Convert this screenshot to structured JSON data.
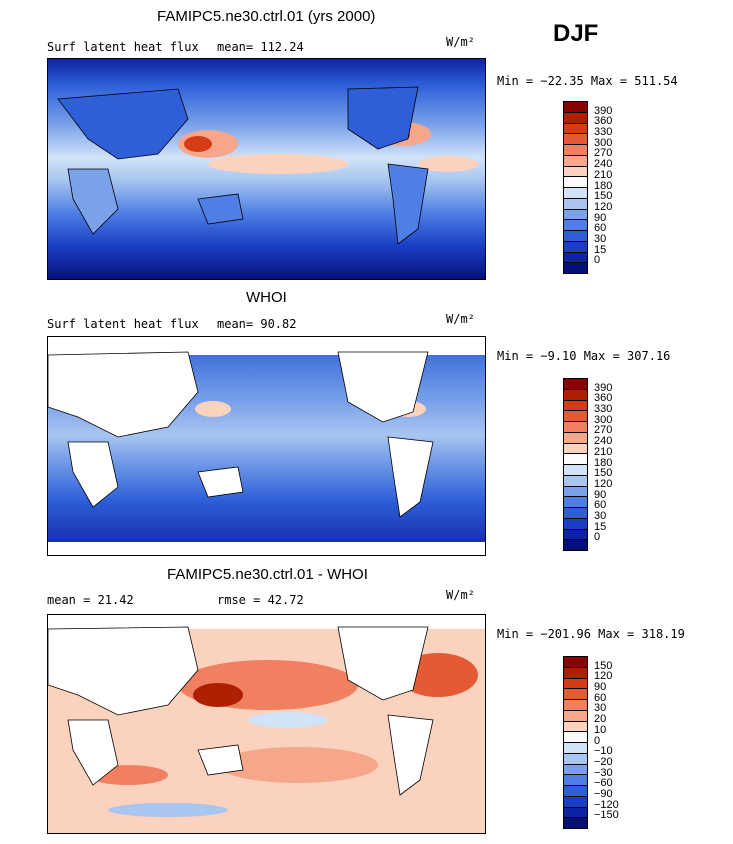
{
  "season": "DJF",
  "unit_label": "W/m²",
  "chart_data": [
    {
      "type": "heatmap",
      "title": "FAMIPC5.ne30.ctrl.01 (yrs 2000)",
      "variable": "Surf latent heat flux",
      "stat1": "mean= 112.24",
      "stat2": "",
      "minmax": "Min = −22.35 Max = 511.54",
      "colorbar": {
        "levels": [
          "390",
          "360",
          "330",
          "300",
          "270",
          "240",
          "210",
          "180",
          "150",
          "120",
          "90",
          "60",
          "30",
          "15",
          "0"
        ],
        "colors": [
          "#8b0000",
          "#b01e00",
          "#d33c14",
          "#e55a32",
          "#f08060",
          "#f6a68a",
          "#fbd2be",
          "#fbfbfb",
          "#d2e3f8",
          "#a8c6f0",
          "#7aa2ea",
          "#4f7fe4",
          "#2e5fd8",
          "#1a3fc4",
          "#0e22a6",
          "#06107a"
        ]
      },
      "min": -22.35,
      "max": 511.54,
      "mean": 112.24
    },
    {
      "type": "heatmap",
      "title": "WHOI",
      "variable": "Surf latent heat flux",
      "stat1": "mean=  90.82",
      "stat2": "",
      "minmax": "Min =  −9.10 Max = 307.16",
      "colorbar": {
        "levels": [
          "390",
          "360",
          "330",
          "300",
          "270",
          "240",
          "210",
          "180",
          "150",
          "120",
          "90",
          "60",
          "30",
          "15",
          "0"
        ],
        "colors": [
          "#8b0000",
          "#b01e00",
          "#d33c14",
          "#e55a32",
          "#f08060",
          "#f6a68a",
          "#fbd2be",
          "#fbfbfb",
          "#d2e3f8",
          "#a8c6f0",
          "#7aa2ea",
          "#4f7fe4",
          "#2e5fd8",
          "#1a3fc4",
          "#0e22a6",
          "#06107a"
        ]
      },
      "min": -9.1,
      "max": 307.16,
      "mean": 90.82
    },
    {
      "type": "heatmap",
      "title": "FAMIPC5.ne30.ctrl.01 - WHOI",
      "variable": "",
      "stat1": "mean =  21.42",
      "stat2": "rmse =  42.72",
      "minmax": "Min = −201.96 Max = 318.19",
      "colorbar": {
        "levels": [
          "150",
          "120",
          "90",
          "60",
          "30",
          "20",
          "10",
          "0",
          "−10",
          "−20",
          "−30",
          "−60",
          "−90",
          "−120",
          "−150"
        ],
        "colors": [
          "#8b0000",
          "#b01e00",
          "#d33c14",
          "#e55a32",
          "#f08060",
          "#f6a68a",
          "#fbd2be",
          "#fbfbfb",
          "#d2e3f8",
          "#a8c6f0",
          "#7aa2ea",
          "#4f7fe4",
          "#2e5fd8",
          "#1a3fc4",
          "#0e22a6",
          "#06107a"
        ]
      },
      "min": -201.96,
      "max": 318.19,
      "mean": 21.42,
      "rmse": 42.72
    }
  ]
}
